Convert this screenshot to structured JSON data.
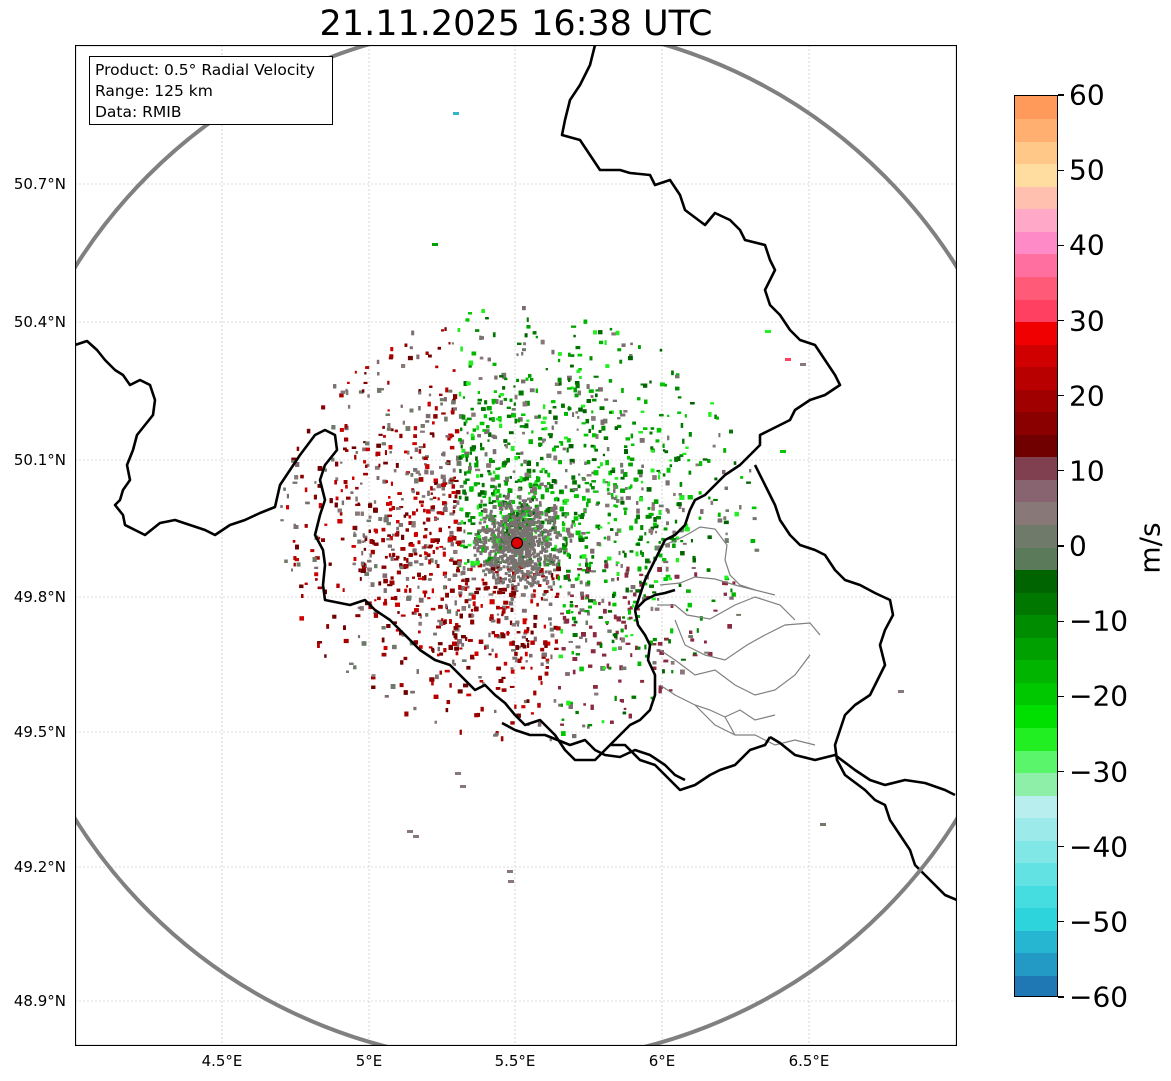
{
  "title": "21.11.2025 16:38 UTC",
  "info": {
    "product": "Product: 0.5° Radial Velocity",
    "range": "Range: 125 km",
    "source": "Data: RMIB"
  },
  "map": {
    "lat_ticks": [
      "50.7°N",
      "50.4°N",
      "50.1°N",
      "49.8°N",
      "49.5°N",
      "49.2°N",
      "48.9°N"
    ],
    "lon_ticks": [
      "4.5°E",
      "5°E",
      "5.5°E",
      "6°E",
      "6.5°E"
    ],
    "radar_site": {
      "lon": 5.5,
      "lat": 49.91
    },
    "range_ring_km": 125,
    "grid": true,
    "colors": {
      "border": "#000000",
      "admin_border": "#808080",
      "range_ring": "#808080",
      "radar_marker": "#e00000"
    }
  },
  "colorbar": {
    "label": "m/s",
    "min": -60,
    "max": 60,
    "ticks": [
      "60",
      "50",
      "40",
      "30",
      "20",
      "10",
      "0",
      "−10",
      "−20",
      "−30",
      "−40",
      "−50",
      "−60"
    ],
    "colors": [
      "#1f77b4",
      "#239ac6",
      "#27b6d2",
      "#2dd4dc",
      "#45dde0",
      "#62e2e2",
      "#80e6e6",
      "#9ceaea",
      "#b8eeee",
      "#8ef0a8",
      "#5af56a",
      "#22ef22",
      "#00e000",
      "#00c800",
      "#00b400",
      "#00a000",
      "#008c00",
      "#007800",
      "#006400",
      "#5a7a5a",
      "#6f7a6a",
      "#887878",
      "#886470",
      "#804050",
      "#700000",
      "#8a0000",
      "#a00000",
      "#b80000",
      "#d00000",
      "#f00000",
      "#ff4060",
      "#ff5a78",
      "#ff70a0",
      "#ff8ac8",
      "#ffa8c8",
      "#ffc0b0",
      "#ffdca0",
      "#ffc888",
      "#ffb070",
      "#ff9a5a"
    ]
  }
}
